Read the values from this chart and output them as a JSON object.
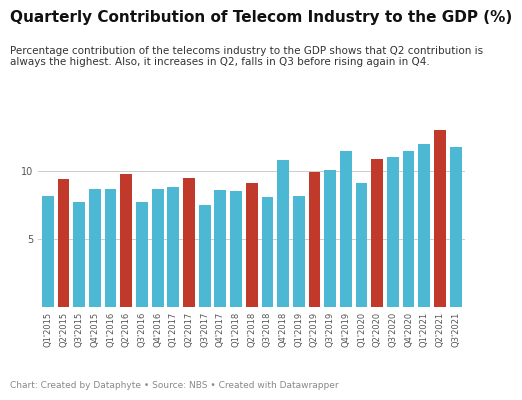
{
  "title": "Quarterly Contribution of Telecom Industry to the GDP (%)",
  "subtitle": "Percentage contribution of the telecoms industry to the GDP shows that Q2 contribution is\nalways the highest. Also, it increases in Q2, falls in Q3 before rising again in Q4.",
  "caption": "Chart: Created by Dataphyte • Source: NBS • Created with Datawrapper",
  "categories": [
    "Q1'2015",
    "Q2'2015",
    "Q3'2015",
    "Q4'2015",
    "Q1'2016",
    "Q2'2016",
    "Q3'2016",
    "Q4'2016",
    "Q1'2017",
    "Q2'2017",
    "Q3'2017",
    "Q4'2017",
    "Q1'2018",
    "Q2'2018",
    "Q3'2018",
    "Q4'2018",
    "Q1'2019",
    "Q2'2019",
    "Q3'2019",
    "Q4'2019",
    "Q1'2020",
    "Q2'2020",
    "Q3'2020",
    "Q4'2020",
    "Q1'2021",
    "Q2'2021",
    "Q3'2021"
  ],
  "values": [
    8.2,
    9.4,
    7.7,
    8.7,
    8.7,
    9.8,
    7.7,
    8.7,
    8.8,
    9.5,
    7.5,
    8.6,
    8.5,
    9.1,
    8.1,
    10.8,
    8.2,
    9.9,
    10.1,
    11.5,
    9.1,
    10.9,
    11.0,
    11.5,
    12.0,
    13.0,
    11.8
  ],
  "is_q2": [
    false,
    true,
    false,
    false,
    false,
    true,
    false,
    false,
    false,
    true,
    false,
    false,
    false,
    true,
    false,
    false,
    false,
    true,
    false,
    false,
    false,
    true,
    false,
    false,
    false,
    true,
    false
  ],
  "bar_color_normal": "#4db8d4",
  "bar_color_highlight": "#c0392b",
  "background_color": "#ffffff",
  "ylim": [
    0,
    14
  ],
  "yticks": [
    5,
    10
  ],
  "title_fontsize": 11,
  "subtitle_fontsize": 7.5,
  "caption_fontsize": 6.5,
  "tick_fontsize": 6
}
